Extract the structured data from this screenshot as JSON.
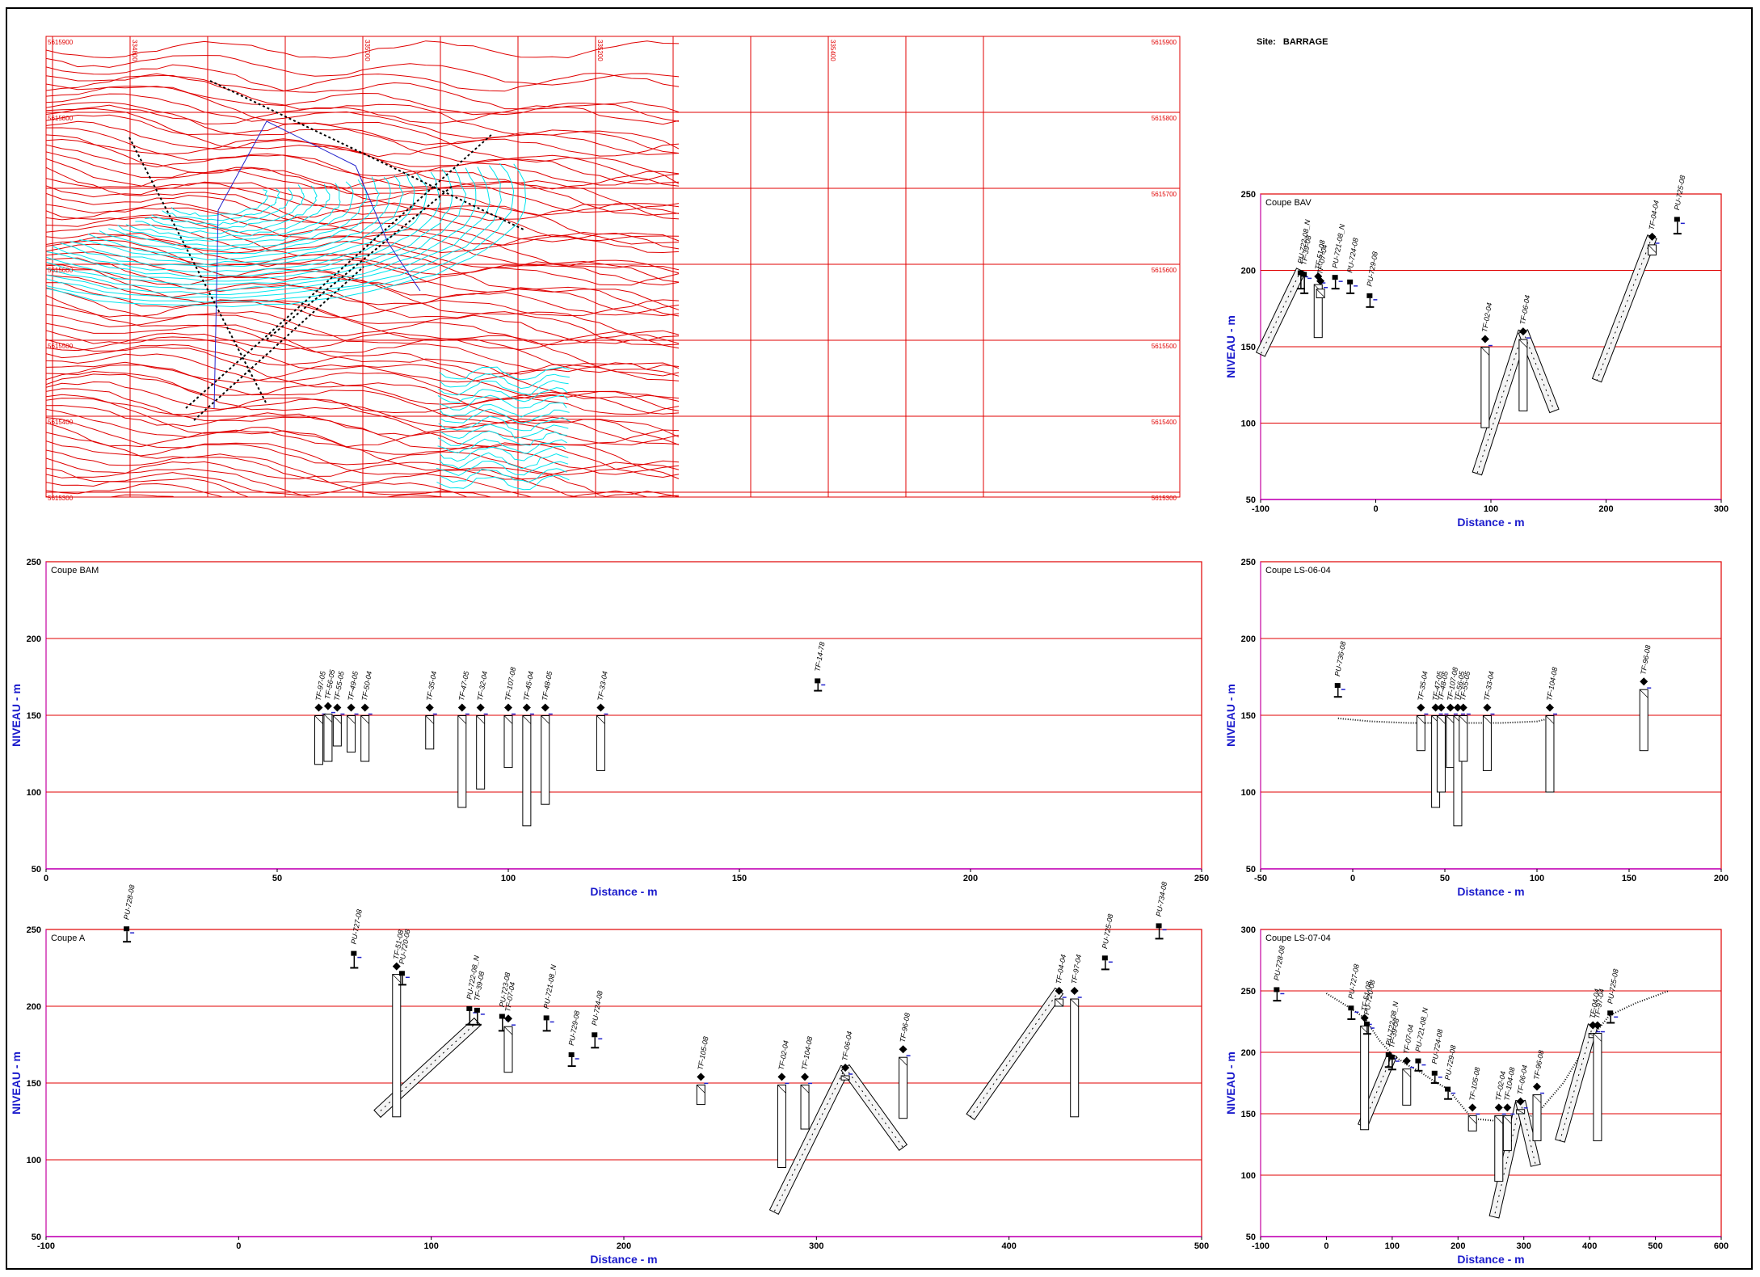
{
  "site": {
    "label": "Site:",
    "value": "BARRAGE"
  },
  "colors": {
    "grid": "#e00000",
    "axis_label": "#1a1acc",
    "map_contour": "#e00000",
    "map_water": "#00e5ee",
    "frame": "#000000"
  },
  "map": {
    "ticks_top": [
      "",
      "334800",
      "",
      "",
      "335000",
      "",
      "",
      "335200",
      "",
      "",
      "335400",
      ""
    ],
    "ticks_right": [
      "5615900",
      "5615800",
      "5615700",
      "5615600",
      "5615500",
      "5615400",
      "5615300"
    ],
    "ticks_left": [
      "5615900",
      "5615800",
      "",
      "5615600",
      "5615500",
      "5615400",
      "5615300"
    ]
  },
  "chart_data": [
    {
      "type": "scatter",
      "title": "Coupe BAV",
      "xlabel": "Distance - m",
      "ylabel": "NIVEAU - m",
      "xlim": [
        -100,
        300
      ],
      "ylim": [
        50,
        250
      ],
      "xticks": [
        -100,
        0,
        100,
        200,
        300
      ],
      "yticks": [
        50,
        100,
        150,
        200,
        250
      ],
      "grid": true,
      "boreholes": [
        {
          "name": "PU-722-08_N",
          "x": -65,
          "collar": 200,
          "bottom": 188,
          "kind": "pu"
        },
        {
          "name": "TF-39-08",
          "x": -62,
          "collar": 199,
          "bottom": 185,
          "kind": "pu"
        },
        {
          "name": "TF-51-08",
          "x": -50,
          "collar": 196,
          "bottom": 156,
          "kind": "tf"
        },
        {
          "name": "TF-07-04",
          "x": -48,
          "collar": 193,
          "bottom": 182,
          "kind": "tf"
        },
        {
          "name": "PU-721-08_N",
          "x": -35,
          "collar": 197,
          "bottom": 188,
          "kind": "pu"
        },
        {
          "name": "PU-724-08",
          "x": -22,
          "collar": 194,
          "bottom": 185,
          "kind": "pu"
        },
        {
          "name": "PU-729-08",
          "x": -5,
          "collar": 185,
          "bottom": 176,
          "kind": "pu"
        },
        {
          "name": "TF-02-04",
          "x": 95,
          "collar": 155,
          "bottom": 97,
          "kind": "tf"
        },
        {
          "name": "TF-06-04",
          "x": 128,
          "collar": 160,
          "bottom": 108,
          "kind": "tf"
        },
        {
          "name": "TF-04-04",
          "x": 240,
          "collar": 222,
          "bottom": 210,
          "kind": "tf"
        },
        {
          "name": "PU-725-08",
          "x": 262,
          "collar": 235,
          "bottom": 224,
          "kind": "pu"
        }
      ],
      "inclined": [
        {
          "x1": -65,
          "y1": 200,
          "x2": -100,
          "y2": 145
        },
        {
          "x1": 128,
          "y1": 160,
          "x2": 88,
          "y2": 67
        },
        {
          "x1": 128,
          "y1": 160,
          "x2": 155,
          "y2": 108
        },
        {
          "x1": 240,
          "y1": 222,
          "x2": 192,
          "y2": 128
        }
      ],
      "profile": []
    },
    {
      "type": "scatter",
      "title": "Coupe BAM",
      "xlabel": "Distance - m",
      "ylabel": "NIVEAU - m",
      "xlim": [
        0,
        250
      ],
      "ylim": [
        50,
        250
      ],
      "xticks": [
        0,
        50,
        100,
        150,
        200,
        250
      ],
      "yticks": [
        50,
        100,
        150,
        200,
        250
      ],
      "grid": true,
      "boreholes": [
        {
          "name": "TF-97-05",
          "x": 59,
          "collar": 155,
          "bottom": 118,
          "kind": "tf"
        },
        {
          "name": "TF-56-05",
          "x": 61,
          "collar": 156,
          "bottom": 120,
          "kind": "tf"
        },
        {
          "name": "TF-55-05",
          "x": 63,
          "collar": 155,
          "bottom": 130,
          "kind": "tf"
        },
        {
          "name": "TF-49-05",
          "x": 66,
          "collar": 155,
          "bottom": 126,
          "kind": "tf"
        },
        {
          "name": "TF-50-04",
          "x": 69,
          "collar": 155,
          "bottom": 120,
          "kind": "tf"
        },
        {
          "name": "TF-35-04",
          "x": 83,
          "collar": 155,
          "bottom": 128,
          "kind": "tf"
        },
        {
          "name": "TF-47-05",
          "x": 90,
          "collar": 155,
          "bottom": 90,
          "kind": "tf"
        },
        {
          "name": "TF-32-04",
          "x": 94,
          "collar": 155,
          "bottom": 102,
          "kind": "tf"
        },
        {
          "name": "TF-107-08",
          "x": 100,
          "collar": 155,
          "bottom": 116,
          "kind": "tf"
        },
        {
          "name": "TF-45-04",
          "x": 104,
          "collar": 155,
          "bottom": 78,
          "kind": "tf"
        },
        {
          "name": "TF-48-05",
          "x": 108,
          "collar": 155,
          "bottom": 92,
          "kind": "tf"
        },
        {
          "name": "TF-33-04",
          "x": 120,
          "collar": 155,
          "bottom": 114,
          "kind": "tf"
        },
        {
          "name": "TF-14-78",
          "x": 167,
          "collar": 174,
          "bottom": 166,
          "kind": "pu"
        }
      ],
      "inclined": [],
      "profile": []
    },
    {
      "type": "scatter",
      "title": "Coupe LS-06-04",
      "xlabel": "Distance - m",
      "ylabel": "NIVEAU - m",
      "xlim": [
        -50,
        200
      ],
      "ylim": [
        50,
        250
      ],
      "xticks": [
        -50,
        0,
        50,
        100,
        150,
        200
      ],
      "yticks": [
        50,
        100,
        150,
        200,
        250
      ],
      "grid": true,
      "boreholes": [
        {
          "name": "PU-736-08",
          "x": -8,
          "collar": 171,
          "bottom": 162,
          "kind": "pu"
        },
        {
          "name": "TF-35-04",
          "x": 37,
          "collar": 155,
          "bottom": 127,
          "kind": "tf"
        },
        {
          "name": "TF-47-05",
          "x": 45,
          "collar": 155,
          "bottom": 90,
          "kind": "tf"
        },
        {
          "name": "TF-48-05",
          "x": 48,
          "collar": 155,
          "bottom": 100,
          "kind": "tf"
        },
        {
          "name": "TF-107-08",
          "x": 53,
          "collar": 155,
          "bottom": 116,
          "kind": "tf"
        },
        {
          "name": "TF-56-05",
          "x": 57,
          "collar": 155,
          "bottom": 78,
          "kind": "tf"
        },
        {
          "name": "TF-55-05",
          "x": 60,
          "collar": 155,
          "bottom": 120,
          "kind": "tf"
        },
        {
          "name": "TF-33-04",
          "x": 73,
          "collar": 155,
          "bottom": 114,
          "kind": "tf"
        },
        {
          "name": "TF-104-08",
          "x": 107,
          "collar": 155,
          "bottom": 100,
          "kind": "tf"
        },
        {
          "name": "TF-96-08",
          "x": 158,
          "collar": 172,
          "bottom": 127,
          "kind": "tf"
        }
      ],
      "inclined": [],
      "profile": [
        [
          -8,
          148
        ],
        [
          10,
          146
        ],
        [
          30,
          145
        ],
        [
          45,
          145
        ],
        [
          60,
          145
        ],
        [
          80,
          145
        ],
        [
          100,
          146
        ],
        [
          107,
          148
        ]
      ]
    },
    {
      "type": "scatter",
      "title": "Coupe A",
      "xlabel": "Distance - m",
      "ylabel": "NIVEAU - m",
      "xlim": [
        -100,
        500
      ],
      "ylim": [
        50,
        250
      ],
      "xticks": [
        -100,
        0,
        100,
        200,
        300,
        400,
        500
      ],
      "yticks": [
        50,
        100,
        150,
        200,
        250
      ],
      "grid": true,
      "boreholes": [
        {
          "name": "PU-728-08",
          "x": -58,
          "collar": 252,
          "bottom": 242,
          "kind": "pu"
        },
        {
          "name": "PU-727-08",
          "x": 60,
          "collar": 236,
          "bottom": 225,
          "kind": "pu"
        },
        {
          "name": "TF-51-08",
          "x": 82,
          "collar": 226,
          "bottom": 128,
          "kind": "tf"
        },
        {
          "name": "PU-720-08",
          "x": 85,
          "collar": 223,
          "bottom": 214,
          "kind": "pu"
        },
        {
          "name": "PU-722-08_N",
          "x": 120,
          "collar": 200,
          "bottom": 188,
          "kind": "pu"
        },
        {
          "name": "TF-39-08",
          "x": 124,
          "collar": 199,
          "bottom": 188,
          "kind": "pu"
        },
        {
          "name": "PU-723-08",
          "x": 137,
          "collar": 195,
          "bottom": 184,
          "kind": "pu"
        },
        {
          "name": "TF-07-04",
          "x": 140,
          "collar": 192,
          "bottom": 157,
          "kind": "tf"
        },
        {
          "name": "PU-721-08_N",
          "x": 160,
          "collar": 194,
          "bottom": 184,
          "kind": "pu"
        },
        {
          "name": "PU-729-08",
          "x": 173,
          "collar": 170,
          "bottom": 161,
          "kind": "pu"
        },
        {
          "name": "PU-724-08",
          "x": 185,
          "collar": 183,
          "bottom": 173,
          "kind": "pu"
        },
        {
          "name": "TF-105-08",
          "x": 240,
          "collar": 154,
          "bottom": 136,
          "kind": "tf"
        },
        {
          "name": "TF-02-04",
          "x": 282,
          "collar": 154,
          "bottom": 95,
          "kind": "tf"
        },
        {
          "name": "TF-104-08",
          "x": 294,
          "collar": 154,
          "bottom": 120,
          "kind": "tf"
        },
        {
          "name": "TF-06-04",
          "x": 315,
          "collar": 160,
          "bottom": 152,
          "kind": "tf"
        },
        {
          "name": "TF-96-08",
          "x": 345,
          "collar": 172,
          "bottom": 127,
          "kind": "tf"
        },
        {
          "name": "TF-04-04",
          "x": 426,
          "collar": 210,
          "bottom": 200,
          "kind": "tf"
        },
        {
          "name": "TF-97-04",
          "x": 434,
          "collar": 210,
          "bottom": 128,
          "kind": "tf"
        },
        {
          "name": "PU-725-08",
          "x": 450,
          "collar": 233,
          "bottom": 224,
          "kind": "pu"
        },
        {
          "name": "PU-734-08",
          "x": 478,
          "collar": 254,
          "bottom": 244,
          "kind": "pu"
        }
      ],
      "inclined": [
        {
          "x1": 124,
          "y1": 190,
          "x2": 72,
          "y2": 130
        },
        {
          "x1": 315,
          "y1": 160,
          "x2": 278,
          "y2": 66
        },
        {
          "x1": 315,
          "y1": 160,
          "x2": 345,
          "y2": 108
        },
        {
          "x1": 426,
          "y1": 210,
          "x2": 380,
          "y2": 128
        }
      ],
      "profile": []
    },
    {
      "type": "scatter",
      "title": "Coupe LS-07-04",
      "xlabel": "Distance - m",
      "ylabel": "NIVEAU - m",
      "xlim": [
        -100,
        600
      ],
      "ylim": [
        50,
        300
      ],
      "xticks": [
        -100,
        0,
        100,
        200,
        300,
        400,
        500,
        600
      ],
      "yticks": [
        50,
        100,
        150,
        200,
        250,
        300
      ],
      "grid": true,
      "boreholes": [
        {
          "name": "PU-728-08",
          "x": -75,
          "collar": 253,
          "bottom": 242,
          "kind": "pu"
        },
        {
          "name": "PU-727-08",
          "x": 38,
          "collar": 238,
          "bottom": 227,
          "kind": "pu"
        },
        {
          "name": "TF-51-08",
          "x": 58,
          "collar": 228,
          "bottom": 137,
          "kind": "tf"
        },
        {
          "name": "PU-720-08",
          "x": 62,
          "collar": 225,
          "bottom": 215,
          "kind": "pu"
        },
        {
          "name": "PU-722-08_N",
          "x": 95,
          "collar": 200,
          "bottom": 188,
          "kind": "pu"
        },
        {
          "name": "TF-39-08",
          "x": 100,
          "collar": 198,
          "bottom": 186,
          "kind": "pu"
        },
        {
          "name": "TF-07-04",
          "x": 122,
          "collar": 193,
          "bottom": 157,
          "kind": "tf"
        },
        {
          "name": "PU-721-08_N",
          "x": 140,
          "collar": 195,
          "bottom": 185,
          "kind": "pu"
        },
        {
          "name": "PU-724-08",
          "x": 165,
          "collar": 185,
          "bottom": 175,
          "kind": "pu"
        },
        {
          "name": "PU-729-08",
          "x": 185,
          "collar": 172,
          "bottom": 162,
          "kind": "pu"
        },
        {
          "name": "TF-105-08",
          "x": 222,
          "collar": 155,
          "bottom": 136,
          "kind": "tf"
        },
        {
          "name": "TF-02-04",
          "x": 262,
          "collar": 155,
          "bottom": 95,
          "kind": "tf"
        },
        {
          "name": "TF-104-08",
          "x": 275,
          "collar": 155,
          "bottom": 120,
          "kind": "tf"
        },
        {
          "name": "TF-06-04",
          "x": 295,
          "collar": 160,
          "bottom": 150,
          "kind": "tf"
        },
        {
          "name": "TF-96-08",
          "x": 320,
          "collar": 172,
          "bottom": 128,
          "kind": "tf"
        },
        {
          "name": "TF-04-04",
          "x": 405,
          "collar": 222,
          "bottom": 212,
          "kind": "tf"
        },
        {
          "name": "TF-97-04",
          "x": 412,
          "collar": 222,
          "bottom": 128,
          "kind": "tf"
        },
        {
          "name": "PU-725-08",
          "x": 432,
          "collar": 234,
          "bottom": 224,
          "kind": "pu"
        }
      ],
      "inclined": [
        {
          "x1": 100,
          "y1": 198,
          "x2": 55,
          "y2": 140
        },
        {
          "x1": 295,
          "y1": 160,
          "x2": 255,
          "y2": 66
        },
        {
          "x1": 295,
          "y1": 160,
          "x2": 318,
          "y2": 108
        },
        {
          "x1": 405,
          "y1": 222,
          "x2": 355,
          "y2": 128
        }
      ],
      "profile": [
        [
          0,
          248
        ],
        [
          30,
          238
        ],
        [
          58,
          228
        ],
        [
          80,
          210
        ],
        [
          100,
          198
        ],
        [
          122,
          190
        ],
        [
          140,
          185
        ],
        [
          165,
          176
        ],
        [
          185,
          170
        ],
        [
          200,
          160
        ],
        [
          222,
          146
        ],
        [
          262,
          144
        ],
        [
          300,
          146
        ],
        [
          320,
          150
        ],
        [
          360,
          175
        ],
        [
          400,
          210
        ],
        [
          430,
          230
        ],
        [
          470,
          240
        ],
        [
          520,
          250
        ]
      ]
    }
  ]
}
